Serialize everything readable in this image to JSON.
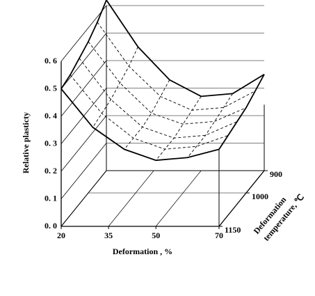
{
  "chart_data": {
    "type": "surface",
    "zlabel": "Relative plasticty",
    "xlabel": "Deformation , %",
    "ylabel": [
      "Deformation",
      "temperature, ℃"
    ],
    "x": [
      20,
      30,
      40,
      50,
      60,
      70
    ],
    "y": [
      900,
      950,
      1000,
      1050,
      1100,
      1150
    ],
    "z": [
      [
        0.62,
        0.45,
        0.33,
        0.27,
        0.28,
        0.35
      ],
      [
        0.58,
        0.42,
        0.31,
        0.26,
        0.27,
        0.33
      ],
      [
        0.55,
        0.4,
        0.29,
        0.25,
        0.26,
        0.31
      ],
      [
        0.53,
        0.38,
        0.28,
        0.24,
        0.25,
        0.3
      ],
      [
        0.51,
        0.37,
        0.28,
        0.24,
        0.25,
        0.29
      ],
      [
        0.5,
        0.36,
        0.28,
        0.24,
        0.25,
        0.28
      ]
    ],
    "xlim": [
      20,
      70
    ],
    "xticks": [
      20,
      35,
      50,
      70
    ],
    "ylim": [
      900,
      1150
    ],
    "yticks": [
      900,
      1000,
      1150
    ],
    "zlim": [
      0,
      0.6
    ],
    "zticks": [
      {
        "value": 0,
        "label": "0. 0"
      },
      {
        "value": 0.1,
        "label": "0. 1"
      },
      {
        "value": 0.2,
        "label": "0. 2"
      },
      {
        "value": 0.3,
        "label": "0. 3"
      },
      {
        "value": 0.4,
        "label": "0. 4"
      },
      {
        "value": 0.5,
        "label": "0. 5"
      },
      {
        "value": 0.6,
        "label": "0. 6"
      }
    ],
    "color": "#000000",
    "grid": true
  }
}
